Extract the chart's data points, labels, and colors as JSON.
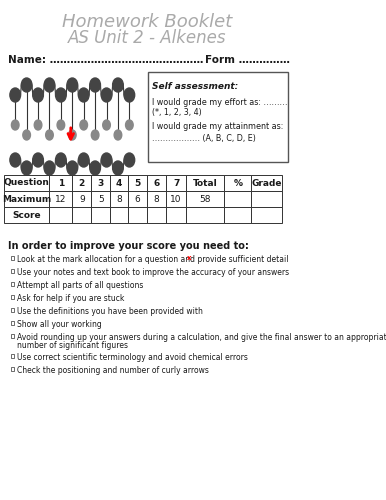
{
  "title_line1": "Homework Booklet",
  "title_line2": "AS Unit 2 - Alkenes",
  "name_label": "Name: ………………………………………",
  "form_label": "Form ……………",
  "self_assessment_title": "Self assessment:",
  "self_assessment_line1": "I would grade my effort as: ………",
  "self_assessment_line1b": "(*, 1, 2, 3, 4)",
  "self_assessment_line2": "I would grade my attainment as:",
  "self_assessment_line2b": "……………… (A, B, C, D, E)",
  "table_headers": [
    "Question",
    "1",
    "2",
    "3",
    "4",
    "5",
    "6",
    "7",
    "Total",
    "%",
    "Grade"
  ],
  "table_max": [
    "Maximum",
    "12",
    "9",
    "5",
    "8",
    "6",
    "8",
    "10",
    "58",
    "",
    ""
  ],
  "table_score": [
    "Score",
    "",
    "",
    "",
    "",
    "",
    "",
    "",
    "",
    "",
    ""
  ],
  "improve_title": "In order to improve your score you need to:",
  "bullet_points": [
    "Look at the mark allocation for a question and provide sufficient detail",
    "Use your notes and text book to improve the accuracy of your answers",
    "Attempt all parts of all questions",
    "Ask for help if you are stuck",
    "Use the definitions you have been provided with",
    "Show all your working",
    "Avoid rounding up your answers during a calculation, and give the final answer to an appropriate\nnumber of significant figures",
    "Use correct scientific terminology and avoid chemical errors",
    "Check the positioning and number of curly arrows"
  ],
  "bg_color": "#ffffff",
  "title_color": "#aaaaaa",
  "text_color": "#1a1a1a",
  "border_color": "#555555"
}
